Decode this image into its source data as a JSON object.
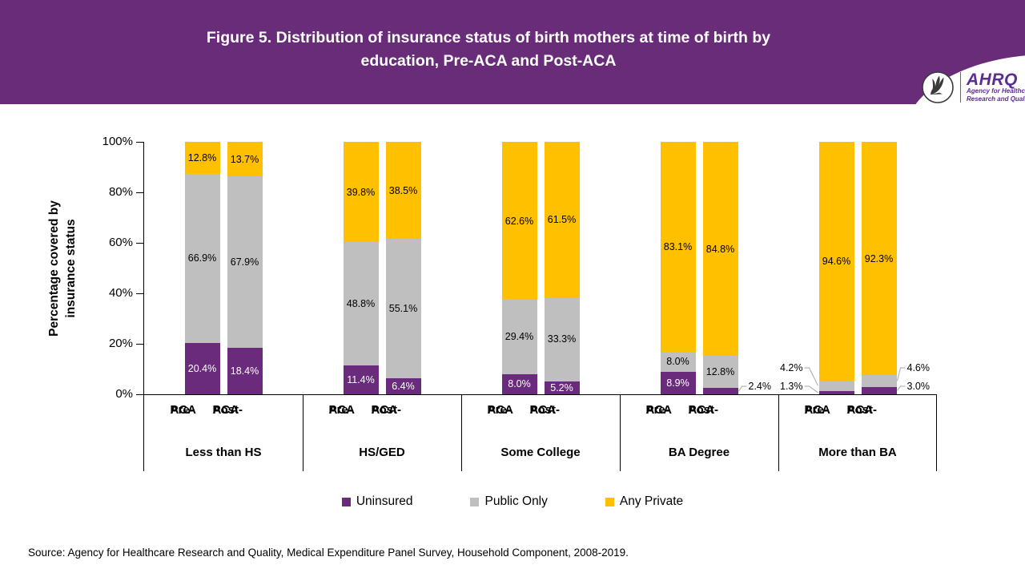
{
  "header": {
    "title_line1": "Figure 5. Distribution of insurance status of birth mothers at time of birth by",
    "title_line2": "education, Pre-ACA and Post-ACA",
    "background_color": "#692C78",
    "logo": {
      "org_acronym": "AHRQ",
      "org_line1": "Agency for Healthcare",
      "org_line2": "Research and Quality"
    }
  },
  "chart_data": {
    "type": "bar",
    "stacked": true,
    "title": "Figure 5. Distribution of insurance status of birth mothers at time of birth by education, Pre-ACA and Post-ACA",
    "ylabel_line1": "Percentage covered by",
    "ylabel_line2": "insurance status",
    "ylim": [
      0,
      100
    ],
    "ytick_labels": [
      "0%",
      "20%",
      "40%",
      "60%",
      "80%",
      "100%"
    ],
    "value_suffix": "%",
    "grid": false,
    "legend_position": "bottom",
    "series_order": [
      "Uninsured",
      "Public Only",
      "Any Private"
    ],
    "legend": [
      {
        "label": "Uninsured",
        "color": "#6A2B7D"
      },
      {
        "label": "Public Only",
        "color": "#BFBFBF"
      },
      {
        "label": "Any Private",
        "color": "#FFC000"
      }
    ],
    "groups": [
      {
        "label": "Less than HS",
        "bars": [
          {
            "label": "Pre-ACA",
            "values": [
              20.4,
              66.9,
              12.8
            ]
          },
          {
            "label": "Post-ACA",
            "values": [
              18.4,
              67.9,
              13.7
            ]
          }
        ]
      },
      {
        "label": "HS/GED",
        "bars": [
          {
            "label": "Pre-ACA",
            "values": [
              11.4,
              48.8,
              39.8
            ]
          },
          {
            "label": "Post-ACA",
            "values": [
              6.4,
              55.1,
              38.5
            ]
          }
        ]
      },
      {
        "label": "Some College",
        "bars": [
          {
            "label": "Pre-ACA",
            "values": [
              8.0,
              29.4,
              62.6
            ]
          },
          {
            "label": "Post-ACA",
            "values": [
              5.2,
              33.3,
              61.5
            ]
          }
        ]
      },
      {
        "label": "BA Degree",
        "bars": [
          {
            "label": "Pre-ACA",
            "values": [
              8.9,
              8.0,
              83.1
            ]
          },
          {
            "label": "Post-ACA",
            "values": [
              2.4,
              12.8,
              84.8
            ]
          }
        ]
      },
      {
        "label": "More than BA",
        "bars": [
          {
            "label": "Pre-ACA",
            "values": [
              1.3,
              4.2,
              94.6
            ]
          },
          {
            "label": "Post-ACA",
            "values": [
              3.0,
              4.6,
              92.3
            ]
          }
        ]
      }
    ]
  },
  "footer": {
    "source": "Source: Agency for Healthcare Research and Quality, Medical Expenditure Panel Survey, Household Component, 2008-2019."
  }
}
